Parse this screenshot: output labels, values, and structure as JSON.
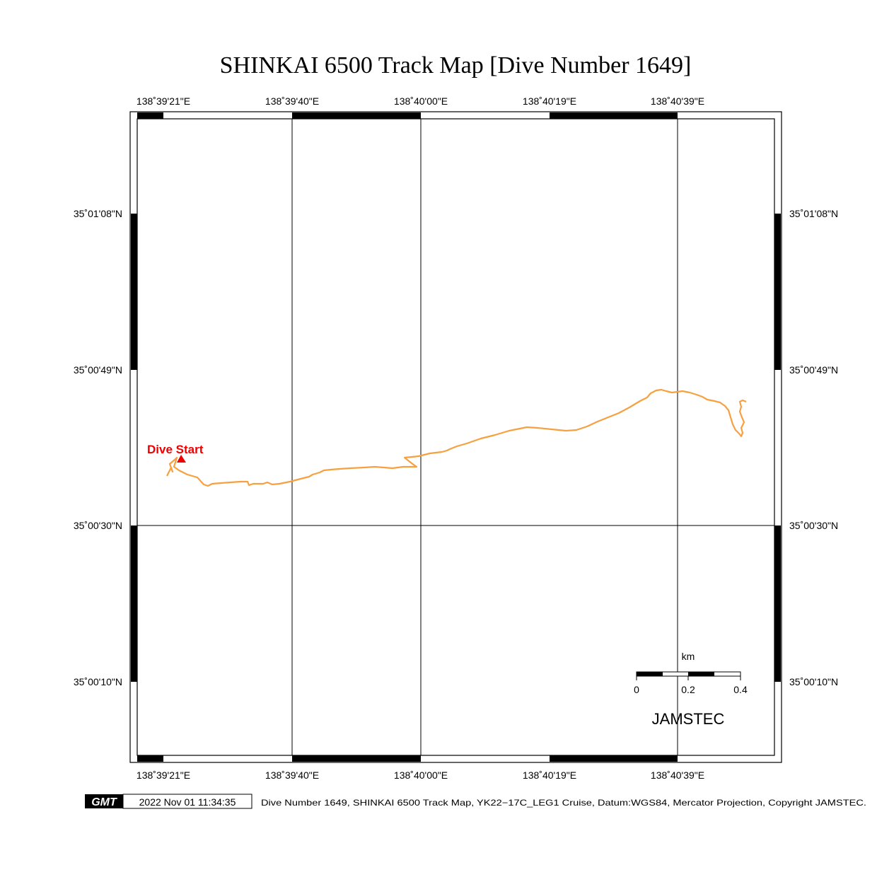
{
  "title": "SHINKAI 6500 Track Map [Dive Number 1649]",
  "longitude_ticks": [
    "138˚39'21\"E",
    "138˚39'40\"E",
    "138˚40'00\"E",
    "138˚40'19\"E",
    "138˚40'39\"E"
  ],
  "latitude_ticks": [
    "35˚01'08\"N",
    "35˚00'49\"N",
    "35˚00'30\"N",
    "35˚00'10\"N"
  ],
  "dive_start_label": "Dive Start",
  "track_color": "#f7a040",
  "marker_color": "#ee0000",
  "scale_bar": {
    "unit": "km",
    "labels": [
      "0",
      "0.2",
      "0.4"
    ]
  },
  "organization": "JAMSTEC",
  "footer": {
    "logo_text": "GMT",
    "timestamp": "2022 Nov 01 11:34:35",
    "caption": "Dive Number 1649, SHINKAI 6500 Track Map, YK22−17C_LEG1 Cruise, Datum:WGS84, Mercator Projection, Copyright JAMSTEC."
  }
}
